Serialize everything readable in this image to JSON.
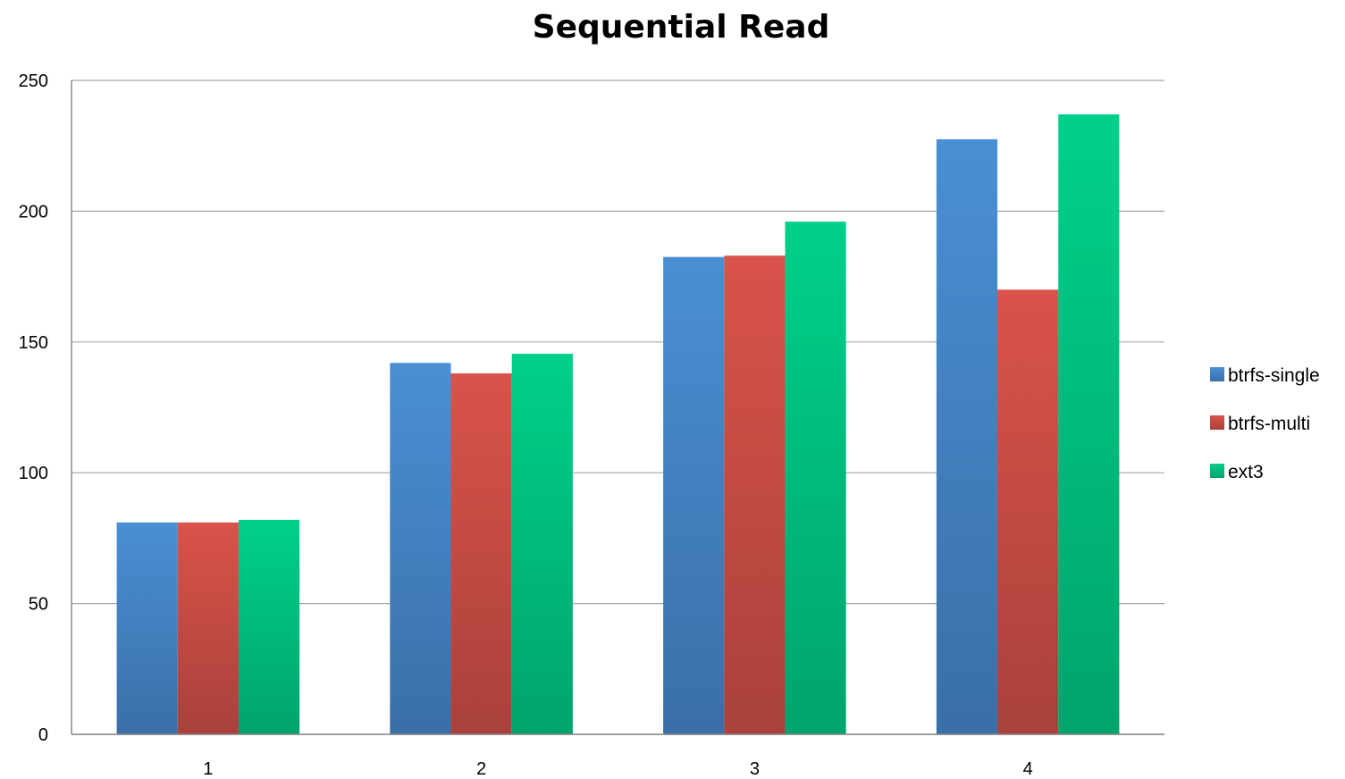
{
  "chart_data": {
    "type": "bar",
    "title": "Sequential Read",
    "xlabel": "",
    "ylabel": "",
    "categories": [
      "1",
      "2",
      "3",
      "4"
    ],
    "series": [
      {
        "name": "btrfs-single",
        "color": "#4a8fd4",
        "color_dark": "#3a6fa8",
        "values": [
          81,
          142,
          182.5,
          227.5
        ]
      },
      {
        "name": "btrfs-multi",
        "color": "#d9534a",
        "color_dark": "#a9413b",
        "values": [
          81,
          138,
          183,
          170
        ]
      },
      {
        "name": "ext3",
        "color": "#00d08a",
        "color_dark": "#00a46c",
        "values": [
          82,
          145.5,
          196,
          237
        ]
      }
    ],
    "ylim": [
      0,
      250
    ],
    "yticks": [
      "0",
      "50",
      "100",
      "150",
      "200",
      "250"
    ],
    "grid": true,
    "legend_position": "right"
  }
}
